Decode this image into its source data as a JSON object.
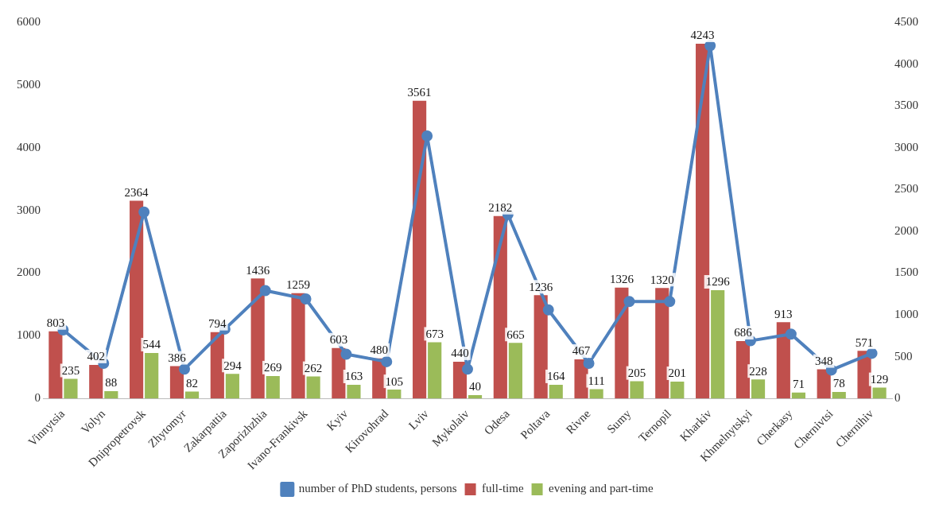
{
  "chart_data": {
    "type": "bar",
    "categories": [
      "Vinnytsia",
      "Volyn",
      "Dnipropetrovsk",
      "Zhytomyr",
      "Zakarpattia",
      "Zaporizhzhia",
      "Ivano-Frankivsk",
      "Kyiv",
      "Kirovohrad",
      "Lviv",
      "Mykolaiv",
      "Odesa",
      "Poltava",
      "Rivne",
      "Sumy",
      "Ternopil",
      "Kharkiv",
      "Khmelnytskyi",
      "Cherkasy",
      "Chernivtsi",
      "Chernihiv"
    ],
    "series": [
      {
        "name": "full-time",
        "color": "#c0504d",
        "axis": "y2",
        "values": [
          803,
          402,
          2364,
          386,
          794,
          1436,
          1259,
          603,
          480,
          3561,
          440,
          2182,
          1236,
          467,
          1326,
          1320,
          4243,
          686,
          913,
          348,
          571
        ],
        "value_labels": [
          "803",
          "402",
          "2364",
          "386",
          "794",
          "1436",
          "1259",
          "603",
          "480",
          "3561",
          "440",
          "2182",
          "1236",
          "467",
          "1326",
          "1320",
          "4243",
          "686",
          "913",
          "348",
          "571"
        ]
      },
      {
        "name": "evening and part-time",
        "color": "#9bbb59",
        "axis": "y2",
        "values": [
          235,
          88,
          544,
          82,
          294,
          269,
          262,
          163,
          105,
          673,
          40,
          665,
          164,
          111,
          205,
          201,
          1296,
          228,
          71,
          78,
          129
        ],
        "value_labels": [
          "235",
          "88",
          "544",
          "82",
          "294",
          "269",
          "262",
          "163",
          "105",
          "673",
          "40",
          "665",
          "164",
          "111",
          "205",
          "201",
          "1296",
          "228",
          "71",
          "78",
          "129"
        ]
      },
      {
        "name": "number of PhD students, persons",
        "type": "line",
        "color": "#4f81bd",
        "axis": "y2",
        "marker": "circle",
        "values": [
          820,
          420,
          2230,
          350,
          830,
          1290,
          1190,
          530,
          440,
          3140,
          350,
          2200,
          1060,
          420,
          1160,
          1160,
          4220,
          690,
          770,
          340,
          540
        ]
      }
    ],
    "ylim": [
      0,
      6000
    ],
    "yticks": [
      0,
      1000,
      2000,
      3000,
      4000,
      5000,
      6000
    ],
    "y2lim": [
      0,
      4500
    ],
    "y2ticks": [
      0,
      500,
      1000,
      1500,
      2000,
      2500,
      3000,
      3500,
      4000,
      4500
    ],
    "legend": "bottom"
  }
}
